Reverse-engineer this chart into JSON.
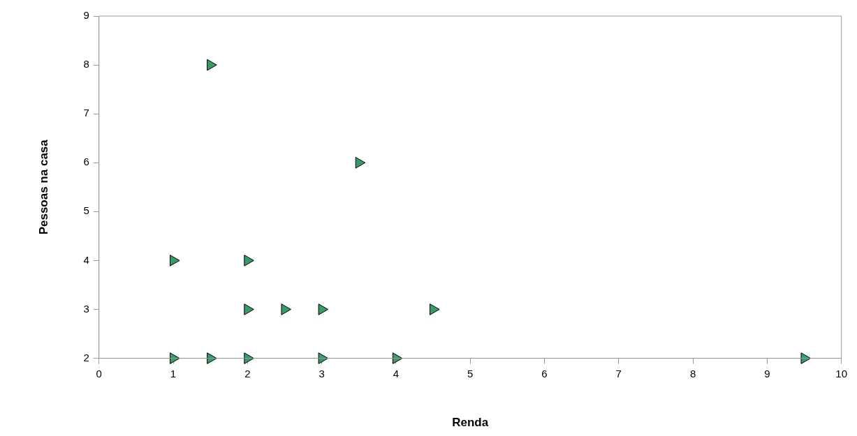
{
  "chart_data": {
    "type": "scatter",
    "xlabel": "Renda",
    "ylabel": "Pessoas na casa",
    "x": [
      1.5,
      3.5,
      1,
      2,
      2,
      2.5,
      3,
      4.5,
      1,
      1.5,
      2,
      3,
      4,
      9.5
    ],
    "values": [
      8,
      6,
      4,
      4,
      3,
      3,
      3,
      3,
      2,
      2,
      2,
      2,
      2,
      2
    ],
    "color": "#3a9a6a",
    "marker": "triangle",
    "grid": false,
    "legend": false,
    "xlim": [
      0,
      10
    ],
    "xticks": [
      0,
      1,
      2,
      3,
      4,
      5,
      6,
      7,
      8,
      9,
      10
    ],
    "ylim": [
      2,
      9
    ],
    "yticks": [
      2,
      3,
      4,
      5,
      6,
      7,
      8,
      9
    ]
  }
}
